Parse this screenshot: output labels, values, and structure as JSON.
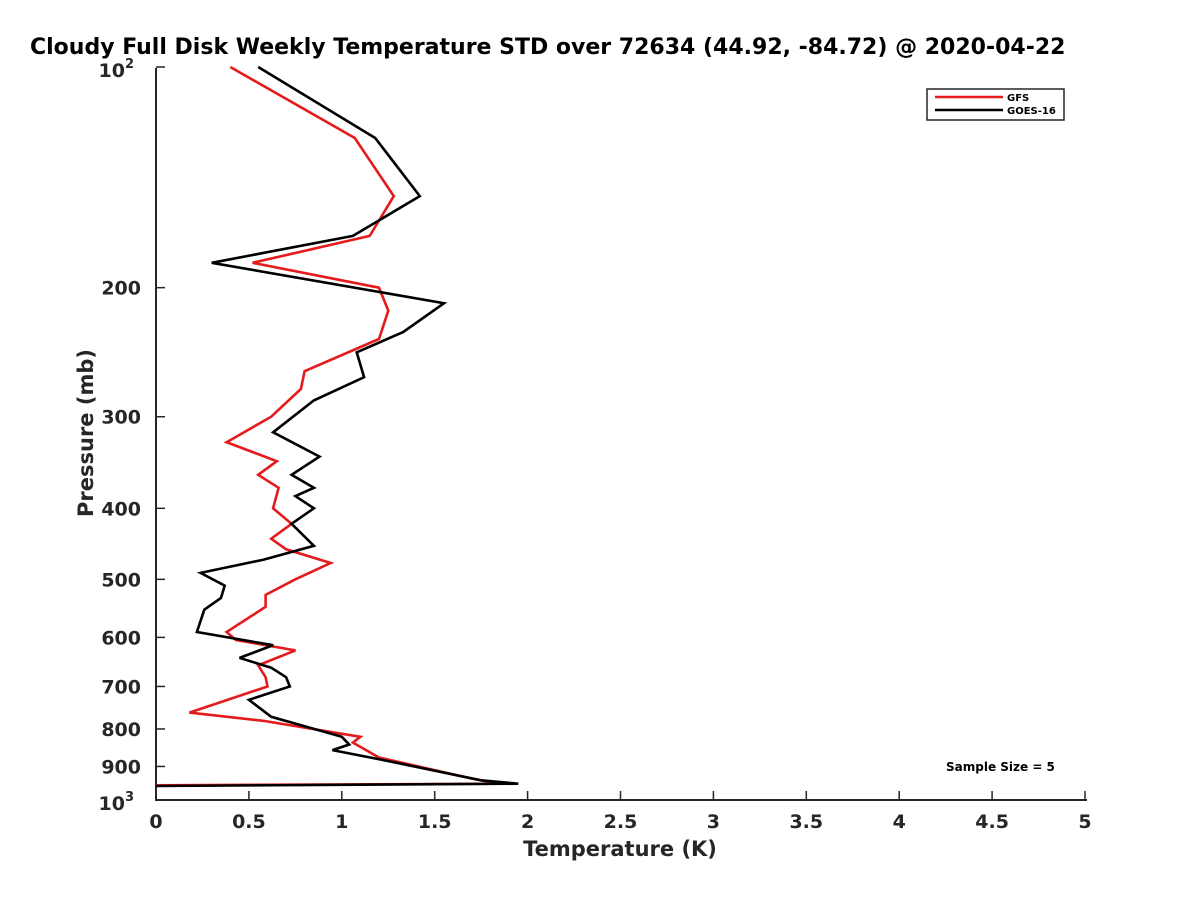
{
  "chart_data": {
    "type": "line",
    "title": "Cloudy Full Disk Weekly Temperature STD over 72634 (44.92, -84.72) @ 2020-04-22",
    "xlabel": "Temperature (K)",
    "ylabel": "Pressure (mb)",
    "xlim": [
      0,
      5
    ],
    "ylim": [
      100,
      1000
    ],
    "y_scale": "log",
    "y_reversed": true,
    "x_ticks": [
      {
        "value": 0,
        "label": "0"
      },
      {
        "value": 0.5,
        "label": "0.5"
      },
      {
        "value": 1,
        "label": "1"
      },
      {
        "value": 1.5,
        "label": "1.5"
      },
      {
        "value": 2,
        "label": "2"
      },
      {
        "value": 2.5,
        "label": "2.5"
      },
      {
        "value": 3,
        "label": "3"
      },
      {
        "value": 3.5,
        "label": "3.5"
      },
      {
        "value": 4,
        "label": "4"
      },
      {
        "value": 4.5,
        "label": "4.5"
      },
      {
        "value": 5,
        "label": "5"
      }
    ],
    "y_ticks": [
      {
        "value": 100,
        "base": "10",
        "exp": "2"
      },
      {
        "value": 200,
        "label": "200"
      },
      {
        "value": 300,
        "label": "300"
      },
      {
        "value": 400,
        "label": "400"
      },
      {
        "value": 500,
        "label": "500"
      },
      {
        "value": 600,
        "label": "600"
      },
      {
        "value": 700,
        "label": "700"
      },
      {
        "value": 800,
        "label": "800"
      },
      {
        "value": 900,
        "label": "900"
      },
      {
        "value": 1000,
        "base": "10",
        "exp": "3"
      }
    ],
    "grid": false,
    "legend_position": "top-right",
    "annotation": "Sample Size = 5",
    "series": [
      {
        "name": "GFS",
        "color": "#e41a1c",
        "points": [
          [
            0.4,
            100
          ],
          [
            1.07,
            125
          ],
          [
            1.28,
            150
          ],
          [
            1.15,
            170
          ],
          [
            0.52,
            185
          ],
          [
            1.2,
            200
          ],
          [
            1.25,
            215
          ],
          [
            1.2,
            235
          ],
          [
            0.8,
            260
          ],
          [
            0.78,
            275
          ],
          [
            0.62,
            300
          ],
          [
            0.38,
            325
          ],
          [
            0.65,
            345
          ],
          [
            0.55,
            360
          ],
          [
            0.66,
            375
          ],
          [
            0.63,
            400
          ],
          [
            0.73,
            420
          ],
          [
            0.62,
            440
          ],
          [
            0.7,
            455
          ],
          [
            0.94,
            475
          ],
          [
            0.75,
            500
          ],
          [
            0.59,
            525
          ],
          [
            0.59,
            545
          ],
          [
            0.38,
            590
          ],
          [
            0.43,
            605
          ],
          [
            0.75,
            625
          ],
          [
            0.55,
            655
          ],
          [
            0.59,
            680
          ],
          [
            0.6,
            700
          ],
          [
            0.18,
            760
          ],
          [
            0.58,
            780
          ],
          [
            1.1,
            820
          ],
          [
            1.06,
            835
          ],
          [
            1.2,
            875
          ],
          [
            1.7,
            935
          ],
          [
            1.85,
            950
          ],
          [
            0,
            955
          ]
        ]
      },
      {
        "name": "GOES-16",
        "color": "#000000",
        "points": [
          [
            0.55,
            100
          ],
          [
            1.18,
            125
          ],
          [
            1.42,
            150
          ],
          [
            1.06,
            170
          ],
          [
            0.3,
            185
          ],
          [
            1.55,
            210
          ],
          [
            1.33,
            230
          ],
          [
            1.08,
            245
          ],
          [
            1.12,
            265
          ],
          [
            0.85,
            285
          ],
          [
            0.63,
            315
          ],
          [
            0.88,
            340
          ],
          [
            0.73,
            360
          ],
          [
            0.85,
            375
          ],
          [
            0.75,
            385
          ],
          [
            0.85,
            400
          ],
          [
            0.73,
            420
          ],
          [
            0.85,
            450
          ],
          [
            0.58,
            470
          ],
          [
            0.24,
            490
          ],
          [
            0.37,
            510
          ],
          [
            0.35,
            530
          ],
          [
            0.26,
            550
          ],
          [
            0.22,
            590
          ],
          [
            0.63,
            615
          ],
          [
            0.45,
            640
          ],
          [
            0.62,
            660
          ],
          [
            0.7,
            680
          ],
          [
            0.72,
            700
          ],
          [
            0.5,
            730
          ],
          [
            0.62,
            770
          ],
          [
            1.0,
            820
          ],
          [
            1.04,
            840
          ],
          [
            0.95,
            855
          ],
          [
            1.25,
            885
          ],
          [
            1.75,
            940
          ],
          [
            1.95,
            950
          ],
          [
            0,
            957
          ]
        ]
      }
    ]
  }
}
